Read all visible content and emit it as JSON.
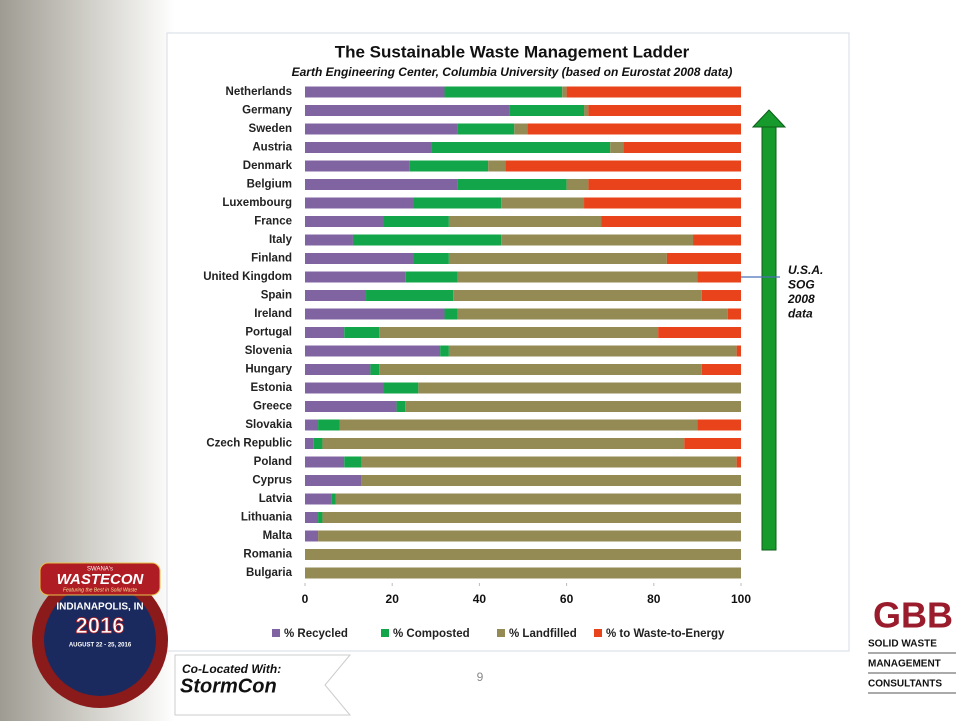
{
  "chart_data": {
    "type": "bar",
    "orientation": "horizontal",
    "stacked": true,
    "title": "The Sustainable Waste Management Ladder",
    "subtitle": "Earth Engineering Center, Columbia University (based on Eurostat 2008 data)",
    "categories": [
      "Netherlands",
      "Germany",
      "Sweden",
      "Austria",
      "Denmark",
      "Belgium",
      "Luxembourg",
      "France",
      "Italy",
      "Finland",
      "United Kingdom",
      "Spain",
      "Ireland",
      "Portugal",
      "Slovenia",
      "Hungary",
      "Estonia",
      "Greece",
      "Slovakia",
      "Czech Republic",
      "Poland",
      "Cyprus",
      "Latvia",
      "Lithuania",
      "Malta",
      "Romania",
      "Bulgaria"
    ],
    "series": [
      {
        "name": "% Recycled",
        "color": "#8064a2",
        "values": [
          32,
          47,
          35,
          29,
          24,
          35,
          25,
          18,
          11,
          25,
          23,
          14,
          32,
          9,
          31,
          15,
          18,
          21,
          3,
          2,
          9,
          13,
          6,
          3,
          3,
          0,
          0
        ]
      },
      {
        "name": "% Composted",
        "color": "#12a54a",
        "values": [
          27,
          17,
          13,
          41,
          18,
          25,
          20,
          15,
          34,
          8,
          12,
          20,
          3,
          8,
          2,
          2,
          8,
          2,
          5,
          2,
          4,
          0,
          1,
          1,
          0,
          0,
          0
        ]
      },
      {
        "name": "% Landfilled",
        "color": "#948a54",
        "values": [
          1,
          1,
          3,
          3,
          4,
          5,
          19,
          35,
          44,
          50,
          55,
          57,
          62,
          64,
          66,
          74,
          74,
          77,
          82,
          83,
          86,
          87,
          93,
          96,
          97,
          100,
          100
        ]
      },
      {
        "name": "% to Waste-to-Energy",
        "color": "#e8431a",
        "values": [
          40,
          35,
          49,
          27,
          54,
          35,
          36,
          32,
          11,
          17,
          10,
          9,
          3,
          19,
          1,
          9,
          0,
          0,
          10,
          13,
          1,
          0,
          0,
          0,
          0,
          0,
          0
        ]
      }
    ],
    "xlim": [
      0,
      100
    ],
    "xticks": [
      0,
      20,
      40,
      60,
      80,
      100
    ],
    "grid": false,
    "legend": "bottom",
    "annotation": [
      "U.S.A.",
      "SOG",
      "2008",
      "data"
    ]
  },
  "slide": {
    "page_number": "9",
    "event_logo": {
      "org": "SWANA's",
      "name": "WASTECON",
      "tagline": "Featuring the Best in Solid Waste",
      "city": "INDIANAPOLIS, IN",
      "year": "2016",
      "dates": "AUGUST 22 - 25, 2016"
    },
    "colocated": {
      "label": "Co-Located With:",
      "name": "StormCon"
    },
    "company_logo": {
      "name": "GBB",
      "lines": [
        "SOLID WASTE",
        "MANAGEMENT",
        "CONSULTANTS"
      ]
    }
  }
}
